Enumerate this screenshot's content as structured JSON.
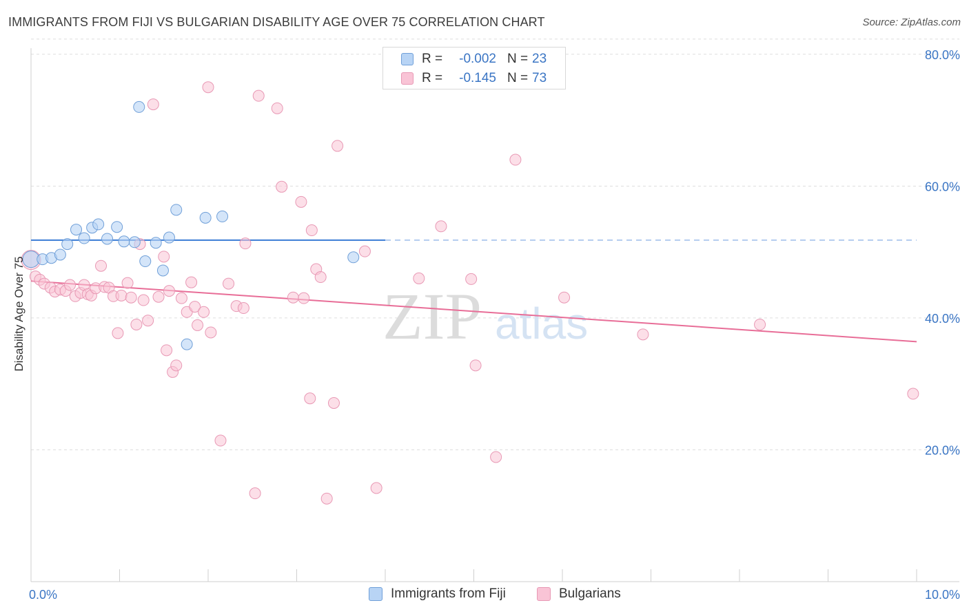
{
  "title": "IMMIGRANTS FROM FIJI VS BULGARIAN DISABILITY AGE OVER 75 CORRELATION CHART",
  "source": "Source: ZipAtlas.com",
  "watermark": {
    "zip": "ZIP",
    "atlas": "atlas"
  },
  "colors": {
    "fiji_fill": "#b8d4f5",
    "fiji_stroke": "#6f9fd8",
    "fiji_line": "#3a7bd5",
    "bulg_fill": "#f9c4d6",
    "bulg_stroke": "#e898b4",
    "bulg_line": "#e86d97",
    "axis_text": "#3a75c4",
    "grid": "#dddddd"
  },
  "legend_top": {
    "fiji": {
      "r_label": "R =",
      "r_value": "-0.002",
      "n_label": "N =",
      "n_value": "23"
    },
    "bulg": {
      "r_label": "R =",
      "r_value": "-0.145",
      "n_label": "N =",
      "n_value": "73"
    }
  },
  "chart_data": {
    "type": "scatter",
    "title": "IMMIGRANTS FROM FIJI VS BULGARIAN DISABILITY AGE OVER 75 CORRELATION CHART",
    "xlabel": "",
    "ylabel": "Disability Age Over 75",
    "xlim": [
      0,
      10
    ],
    "ylim": [
      0,
      85
    ],
    "x_tick_labels": [
      "0.0%",
      "10.0%"
    ],
    "y_ticks": [
      20,
      40,
      60,
      80
    ],
    "y_tick_labels": [
      "20.0%",
      "40.0%",
      "60.0%",
      "80.0%"
    ],
    "grid": true,
    "legend_position": "bottom",
    "series": [
      {
        "name": "Immigrants from Fiji",
        "points": [
          {
            "x": 0.0,
            "y": 48.9
          },
          {
            "x": 0.13,
            "y": 48.9
          },
          {
            "x": 0.23,
            "y": 49.1
          },
          {
            "x": 0.33,
            "y": 49.6
          },
          {
            "x": 0.41,
            "y": 51.2
          },
          {
            "x": 0.51,
            "y": 53.4
          },
          {
            "x": 0.6,
            "y": 52.1
          },
          {
            "x": 0.69,
            "y": 53.7
          },
          {
            "x": 0.76,
            "y": 54.2
          },
          {
            "x": 0.86,
            "y": 52.0
          },
          {
            "x": 0.97,
            "y": 53.8
          },
          {
            "x": 1.05,
            "y": 51.6
          },
          {
            "x": 1.17,
            "y": 51.5
          },
          {
            "x": 1.22,
            "y": 72.0
          },
          {
            "x": 1.29,
            "y": 48.6
          },
          {
            "x": 1.41,
            "y": 51.4
          },
          {
            "x": 1.49,
            "y": 47.2
          },
          {
            "x": 1.56,
            "y": 52.2
          },
          {
            "x": 1.64,
            "y": 56.4
          },
          {
            "x": 1.76,
            "y": 36.0
          },
          {
            "x": 1.97,
            "y": 55.2
          },
          {
            "x": 2.16,
            "y": 55.4
          },
          {
            "x": 3.64,
            "y": 49.2
          }
        ],
        "trend": {
          "x_start": 0.0,
          "y_start": 51.8,
          "x_end": 4.0,
          "y_end": 51.8,
          "dashed_to": 10.0
        }
      },
      {
        "name": "Bulgarians",
        "points": [
          {
            "x": 0.0,
            "y": 48.8
          },
          {
            "x": 0.05,
            "y": 46.3
          },
          {
            "x": 0.1,
            "y": 45.8
          },
          {
            "x": 0.15,
            "y": 45.2
          },
          {
            "x": 0.22,
            "y": 44.6
          },
          {
            "x": 0.27,
            "y": 44.0
          },
          {
            "x": 0.33,
            "y": 44.3
          },
          {
            "x": 0.39,
            "y": 44.1
          },
          {
            "x": 0.44,
            "y": 45.0
          },
          {
            "x": 0.5,
            "y": 43.3
          },
          {
            "x": 0.56,
            "y": 43.8
          },
          {
            "x": 0.6,
            "y": 45.0
          },
          {
            "x": 0.64,
            "y": 43.6
          },
          {
            "x": 0.68,
            "y": 43.4
          },
          {
            "x": 0.73,
            "y": 44.5
          },
          {
            "x": 0.79,
            "y": 47.9
          },
          {
            "x": 0.83,
            "y": 44.7
          },
          {
            "x": 0.88,
            "y": 44.6
          },
          {
            "x": 0.93,
            "y": 43.3
          },
          {
            "x": 0.98,
            "y": 37.7
          },
          {
            "x": 1.02,
            "y": 43.4
          },
          {
            "x": 1.09,
            "y": 45.3
          },
          {
            "x": 1.13,
            "y": 43.1
          },
          {
            "x": 1.19,
            "y": 39.0
          },
          {
            "x": 1.23,
            "y": 51.2
          },
          {
            "x": 1.27,
            "y": 42.7
          },
          {
            "x": 1.32,
            "y": 39.6
          },
          {
            "x": 1.38,
            "y": 72.4
          },
          {
            "x": 1.44,
            "y": 43.2
          },
          {
            "x": 1.5,
            "y": 49.3
          },
          {
            "x": 1.53,
            "y": 35.1
          },
          {
            "x": 1.56,
            "y": 44.1
          },
          {
            "x": 1.6,
            "y": 31.8
          },
          {
            "x": 1.64,
            "y": 32.8
          },
          {
            "x": 1.7,
            "y": 43.0
          },
          {
            "x": 1.76,
            "y": 40.9
          },
          {
            "x": 1.81,
            "y": 45.4
          },
          {
            "x": 1.85,
            "y": 41.7
          },
          {
            "x": 1.88,
            "y": 38.9
          },
          {
            "x": 1.95,
            "y": 40.9
          },
          {
            "x": 2.0,
            "y": 75.0
          },
          {
            "x": 2.03,
            "y": 37.8
          },
          {
            "x": 2.14,
            "y": 21.4
          },
          {
            "x": 2.23,
            "y": 45.2
          },
          {
            "x": 2.32,
            "y": 41.8
          },
          {
            "x": 2.4,
            "y": 41.5
          },
          {
            "x": 2.42,
            "y": 51.3
          },
          {
            "x": 2.53,
            "y": 13.4
          },
          {
            "x": 2.57,
            "y": 73.7
          },
          {
            "x": 2.78,
            "y": 71.8
          },
          {
            "x": 2.83,
            "y": 59.9
          },
          {
            "x": 2.96,
            "y": 43.1
          },
          {
            "x": 3.05,
            "y": 57.6
          },
          {
            "x": 3.08,
            "y": 43.0
          },
          {
            "x": 3.15,
            "y": 27.8
          },
          {
            "x": 3.17,
            "y": 53.3
          },
          {
            "x": 3.22,
            "y": 47.4
          },
          {
            "x": 3.27,
            "y": 46.2
          },
          {
            "x": 3.34,
            "y": 12.6
          },
          {
            "x": 3.42,
            "y": 27.1
          },
          {
            "x": 3.46,
            "y": 66.1
          },
          {
            "x": 3.77,
            "y": 50.1
          },
          {
            "x": 3.9,
            "y": 14.2
          },
          {
            "x": 4.38,
            "y": 46.0
          },
          {
            "x": 4.63,
            "y": 53.9
          },
          {
            "x": 4.97,
            "y": 45.9
          },
          {
            "x": 5.02,
            "y": 32.8
          },
          {
            "x": 5.25,
            "y": 18.9
          },
          {
            "x": 5.47,
            "y": 64.0
          },
          {
            "x": 6.02,
            "y": 43.1
          },
          {
            "x": 6.91,
            "y": 37.5
          },
          {
            "x": 8.23,
            "y": 39.0
          },
          {
            "x": 9.96,
            "y": 28.5
          }
        ],
        "trend": {
          "x_start": 0.0,
          "y_start": 45.6,
          "x_end": 10.0,
          "y_end": 36.4
        }
      }
    ]
  }
}
